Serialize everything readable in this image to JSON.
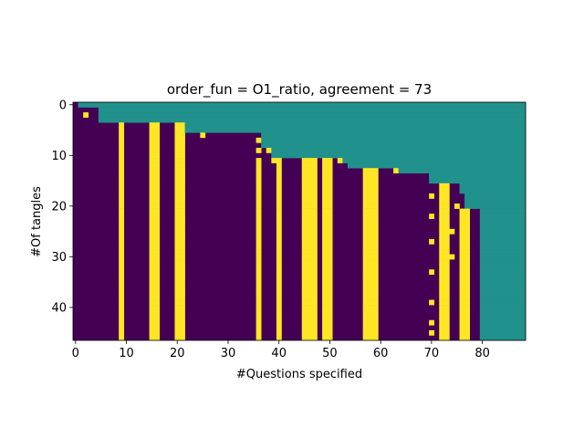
{
  "chart_data": {
    "type": "heatmap",
    "title": "order_fun = O1_ratio, agreement = 73",
    "xlabel": "#Questions specified",
    "ylabel": "#Of tangles",
    "x_ticks": [
      0,
      10,
      20,
      30,
      40,
      50,
      60,
      70,
      80
    ],
    "y_ticks": [
      0,
      10,
      20,
      30,
      40
    ],
    "xlim": [
      -0.5,
      88.5
    ],
    "ylim": [
      46.5,
      -0.5
    ],
    "n_cols": 89,
    "n_rows": 47,
    "value_levels": {
      "0": "unspecified (teal)",
      "1": "answer 0 (dark purple)",
      "2": "answer 1 (yellow)"
    },
    "colors": {
      "low": "#440154",
      "mid": "#21918c",
      "high": "#fde725"
    },
    "row_specified_counts": [
      1,
      5,
      5,
      5,
      22,
      22,
      37,
      37,
      37,
      39,
      39,
      53,
      54,
      64,
      70,
      70,
      76,
      76,
      77,
      77,
      77,
      80,
      80,
      80,
      80,
      80,
      80,
      80,
      80,
      80,
      80,
      80,
      80,
      80,
      80,
      80,
      80,
      80,
      80,
      80,
      80,
      80,
      80,
      80,
      80,
      80,
      80
    ],
    "yellow_columns": [
      {
        "col": 9,
        "from_row": 0
      },
      {
        "col": 15,
        "from_row": 1
      },
      {
        "col": 16,
        "from_row": 1
      },
      {
        "col": 20,
        "from_row": 1
      },
      {
        "col": 21,
        "from_row": 1
      },
      {
        "col": 36,
        "from_row": 11
      },
      {
        "col": 40,
        "from_row": 10
      },
      {
        "col": 45,
        "from_row": 7
      },
      {
        "col": 46,
        "from_row": 7
      },
      {
        "col": 47,
        "from_row": 7
      },
      {
        "col": 49,
        "from_row": 8
      },
      {
        "col": 50,
        "from_row": 8
      },
      {
        "col": 57,
        "from_row": 11
      },
      {
        "col": 58,
        "from_row": 11
      },
      {
        "col": 59,
        "from_row": 11
      },
      {
        "col": 72,
        "from_row": 12
      },
      {
        "col": 73,
        "from_row": 12
      },
      {
        "col": 76,
        "from_row": 21
      },
      {
        "col": 77,
        "from_row": 21
      },
      {
        "col": 86,
        "from_row": 15
      }
    ],
    "yellow_cells": [
      [
        0,
        1
      ],
      [
        1,
        13
      ],
      [
        2,
        2
      ],
      [
        2,
        5
      ],
      [
        2,
        14
      ],
      [
        4,
        25
      ],
      [
        5,
        20
      ],
      [
        6,
        25
      ],
      [
        6,
        37
      ],
      [
        7,
        36
      ],
      [
        9,
        36
      ],
      [
        9,
        38
      ],
      [
        10,
        41
      ],
      [
        10,
        42
      ],
      [
        11,
        39
      ],
      [
        11,
        52
      ],
      [
        12,
        61
      ],
      [
        13,
        63
      ],
      [
        13,
        65
      ],
      [
        18,
        70
      ],
      [
        20,
        73
      ],
      [
        20,
        75
      ],
      [
        22,
        70
      ],
      [
        22,
        76
      ],
      [
        25,
        73
      ],
      [
        25,
        74
      ],
      [
        27,
        70
      ],
      [
        30,
        74
      ],
      [
        33,
        70
      ],
      [
        36,
        73
      ],
      [
        39,
        70
      ],
      [
        41,
        73
      ],
      [
        43,
        70
      ],
      [
        45,
        70
      ]
    ]
  }
}
